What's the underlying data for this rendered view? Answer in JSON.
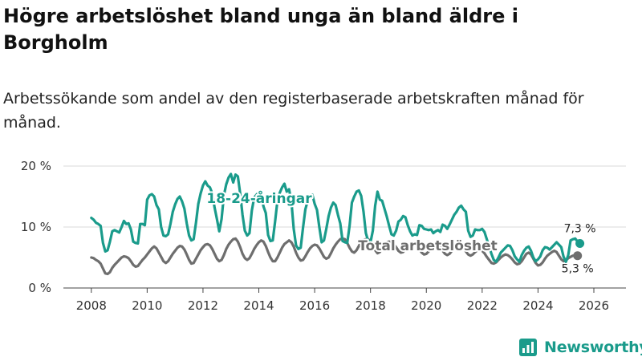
{
  "title": "Högre arbetslöshet bland unga än bland äldre i Borgholm",
  "subtitle": "Arbetssökande som andel av den registerbaserade arbetskraften månad för månad.",
  "brand": {
    "name": "Newsworthy",
    "icon": "newsworthy-logo-icon",
    "color": "#1a9b8b"
  },
  "chart_data": {
    "type": "line",
    "x_start": "2008-01",
    "frequency": "monthly",
    "x_ticks": [
      "2008",
      "2010",
      "2012",
      "2014",
      "2016",
      "2018",
      "2020",
      "2022",
      "2024",
      "2026"
    ],
    "y_ticks": [
      "0 %",
      "10 %",
      "20 %"
    ],
    "ylim": [
      0,
      20
    ],
    "grid": "horizontal",
    "legend": "none (direct labels)",
    "series": [
      {
        "name": "18-24-åringar",
        "color": "#1a9b8b",
        "end_label": "7,3 %",
        "values": [
          11.5,
          11.2,
          10.7,
          10.5,
          10.2,
          7.4,
          6.0,
          6.2,
          7.6,
          9.3,
          9.5,
          9.3,
          9.1,
          10.0,
          11.0,
          10.5,
          10.6,
          9.6,
          7.6,
          7.4,
          7.3,
          10.5,
          10.5,
          10.3,
          14.5,
          15.2,
          15.4,
          15.0,
          13.6,
          12.9,
          10.0,
          8.6,
          8.5,
          8.8,
          10.5,
          12.5,
          13.7,
          14.6,
          15.0,
          14.2,
          13.0,
          10.6,
          8.6,
          7.8,
          8.0,
          10.7,
          13.8,
          15.5,
          16.8,
          17.5,
          16.8,
          16.5,
          15.5,
          13.2,
          11.3,
          9.3,
          11.3,
          15.2,
          17.0,
          18.1,
          18.7,
          17.3,
          18.6,
          18.3,
          15.5,
          12.0,
          9.4,
          8.6,
          9.0,
          12.7,
          14.8,
          15.3,
          15.7,
          15.4,
          13.4,
          12.3,
          8.7,
          7.7,
          7.8,
          10.9,
          14.3,
          15.6,
          16.5,
          17.1,
          15.8,
          16.2,
          14.2,
          9.7,
          7.0,
          6.4,
          6.6,
          9.9,
          12.9,
          14.3,
          15.0,
          15.3,
          13.8,
          12.8,
          10.0,
          7.5,
          7.8,
          9.7,
          11.8,
          13.2,
          14.0,
          13.6,
          12.0,
          10.6,
          7.7,
          7.5,
          7.4,
          10.2,
          14.0,
          15.0,
          15.8,
          16.0,
          15.1,
          12.5,
          9.0,
          7.7,
          7.5,
          9.4,
          13.5,
          15.8,
          14.5,
          14.3,
          13.0,
          11.7,
          10.2,
          8.8,
          8.6,
          9.4,
          10.9,
          11.2,
          11.8,
          11.6,
          10.3,
          9.3,
          8.6,
          8.8,
          8.7,
          10.3,
          10.2,
          9.7,
          9.6,
          9.5,
          9.6,
          9.0,
          9.3,
          9.5,
          9.2,
          10.4,
          10.2,
          9.7,
          10.4,
          11.2,
          12.0,
          12.5,
          13.2,
          13.5,
          12.9,
          12.5,
          9.4,
          8.4,
          8.6,
          9.6,
          9.5,
          9.5,
          9.7,
          9.2,
          8.0,
          6.8,
          5.6,
          4.6,
          4.3,
          5.0,
          5.8,
          6.2,
          6.6,
          7.0,
          6.9,
          6.2,
          5.2,
          4.7,
          4.3,
          5.4,
          6.1,
          6.6,
          6.8,
          6.1,
          5.0,
          4.4,
          4.7,
          5.2,
          6.2,
          6.7,
          6.6,
          6.3,
          6.7,
          7.1,
          7.5,
          7.1,
          6.7,
          5.1,
          4.3,
          5.4,
          7.8,
          8.0,
          8.1,
          7.6,
          7.3
        ]
      },
      {
        "name": "Total arbetslöshet",
        "color": "#6e6e6e",
        "end_label": "5,3 %",
        "values": [
          5.0,
          4.9,
          4.6,
          4.4,
          4.0,
          3.2,
          2.4,
          2.3,
          2.6,
          3.3,
          3.8,
          4.2,
          4.6,
          5.0,
          5.2,
          5.1,
          4.9,
          4.4,
          3.8,
          3.5,
          3.6,
          4.1,
          4.6,
          5.0,
          5.5,
          6.0,
          6.5,
          6.8,
          6.5,
          5.8,
          5.1,
          4.4,
          4.1,
          4.4,
          5.0,
          5.6,
          6.1,
          6.6,
          6.9,
          6.8,
          6.3,
          5.5,
          4.6,
          4.0,
          4.1,
          4.8,
          5.5,
          6.2,
          6.7,
          7.1,
          7.2,
          7.0,
          6.4,
          5.6,
          4.8,
          4.4,
          4.6,
          5.4,
          6.4,
          7.1,
          7.6,
          8.0,
          8.1,
          7.6,
          6.7,
          5.6,
          4.9,
          4.6,
          4.9,
          5.6,
          6.4,
          7.0,
          7.5,
          7.8,
          7.6,
          6.9,
          5.9,
          5.0,
          4.4,
          4.4,
          5.0,
          5.8,
          6.6,
          7.2,
          7.5,
          7.8,
          7.5,
          6.8,
          5.8,
          5.0,
          4.5,
          4.6,
          5.2,
          5.9,
          6.5,
          6.9,
          7.1,
          7.0,
          6.5,
          5.8,
          5.1,
          4.8,
          5.0,
          5.7,
          6.5,
          7.1,
          7.6,
          8.0,
          8.1,
          8.0,
          7.4,
          6.6,
          6.0,
          5.8,
          6.2,
          6.9,
          7.6,
          7.9,
          8.0,
          8.0,
          7.7,
          7.0,
          6.2,
          5.7,
          5.9,
          6.5,
          7.1,
          7.5,
          7.6,
          7.5,
          7.2,
          6.7,
          6.1,
          5.8,
          5.9,
          6.4,
          6.9,
          7.3,
          7.4,
          7.3,
          7.0,
          6.4,
          5.8,
          5.5,
          5.6,
          6.0,
          6.5,
          6.9,
          7.0,
          6.9,
          6.6,
          6.1,
          5.6,
          5.4,
          5.6,
          6.1,
          6.6,
          6.9,
          7.0,
          6.8,
          6.5,
          6.0,
          5.5,
          5.3,
          5.5,
          5.9,
          6.2,
          6.3,
          6.1,
          5.7,
          5.1,
          4.6,
          4.1,
          4.0,
          4.2,
          4.6,
          5.0,
          5.3,
          5.5,
          5.4,
          5.1,
          4.7,
          4.2,
          3.9,
          4.0,
          4.4,
          5.0,
          5.6,
          5.8,
          5.5,
          4.8,
          4.1,
          3.7,
          3.8,
          4.2,
          4.8,
          5.3,
          5.6,
          5.9,
          6.1,
          5.9,
          5.3,
          4.7,
          4.4,
          4.5,
          4.9,
          5.1,
          5.3,
          5.3,
          5.3
        ]
      }
    ]
  }
}
